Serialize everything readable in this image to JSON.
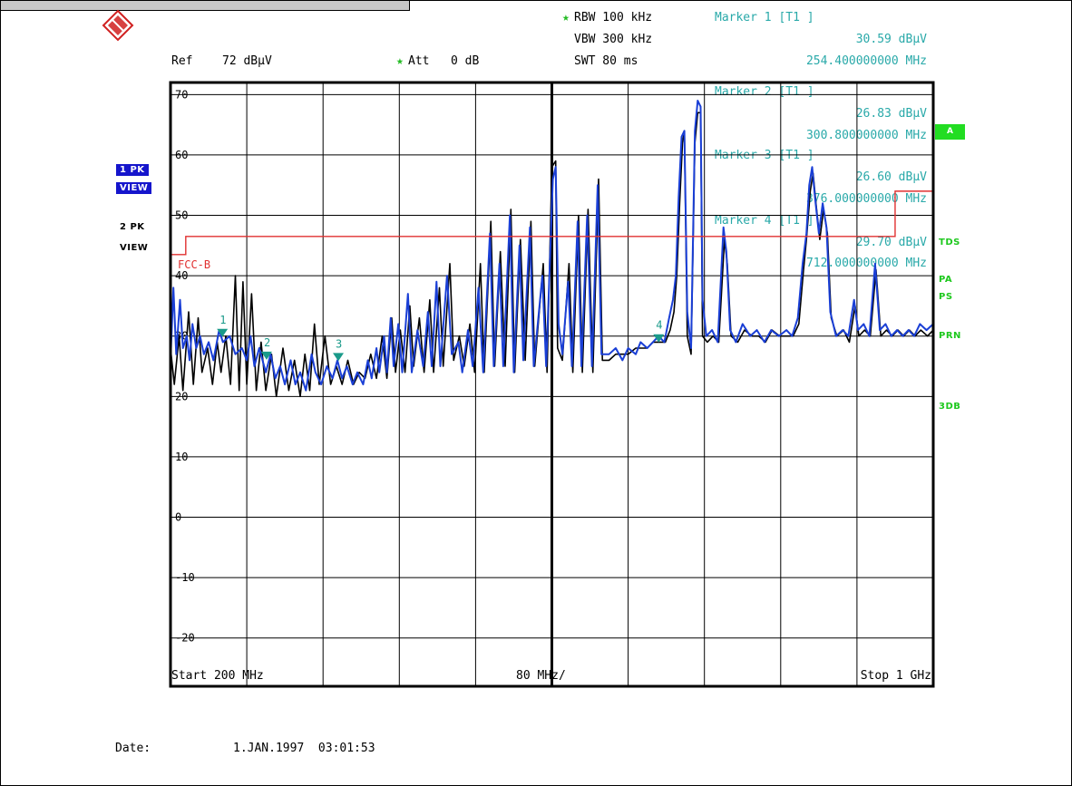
{
  "header": {
    "ref_label": "Ref",
    "ref_value": "72 dBµV",
    "att": "Att   0 dB",
    "rbw": "RBW 100 kHz",
    "vbw": "VBW 300 kHz",
    "swt": "SWT 80 ms"
  },
  "markers": [
    {
      "title": "Marker 1 [T1 ]",
      "level": "30.59 dBµV",
      "freq": "254.400000000 MHz"
    },
    {
      "title": "Marker 2 [T1 ]",
      "level": "26.83 dBµV",
      "freq": "300.800000000 MHz"
    },
    {
      "title": "Marker 3 [T1 ]",
      "level": "26.60 dBµV",
      "freq": "376.000000000 MHz"
    },
    {
      "title": "Marker 4 [T1 ]",
      "level": "29.70 dBµV",
      "freq": "712.000000000 MHz"
    }
  ],
  "side_left": {
    "trace1": "1 PK",
    "trace1_view": "VIEW",
    "trace2": "2 PK",
    "trace2_view": "VIEW"
  },
  "side_right": {
    "a": "A",
    "tds": "TDS",
    "pa": "PA",
    "ps": "PS",
    "prn": "PRN",
    "db3": "3DB"
  },
  "footer": {
    "start": "Start 200 MHz",
    "span": "80 MHz/",
    "stop": "Stop 1 GHz",
    "date_label": "Date:",
    "date_value": "1.JAN.1997  03:01:53"
  },
  "colors": {
    "trace1": "#1a3fd6",
    "trace2": "#000000",
    "limit": "#e03030",
    "marker": "#1a9a8a",
    "text_cyan": "#29a9a9",
    "status_green": "#1ec81e"
  },
  "chart_data": {
    "type": "line",
    "xlabel": "",
    "ylabel": "",
    "xlim": [
      200,
      1000
    ],
    "ylim": [
      -28,
      72
    ],
    "y_ticks": [
      70,
      60,
      50,
      40,
      30,
      20,
      10,
      0,
      -10,
      -20
    ],
    "limit_line": {
      "name": "FCC-B",
      "points": [
        [
          200,
          43.5
        ],
        [
          216,
          43.5
        ],
        [
          216,
          46.5
        ],
        [
          960,
          46.5
        ],
        [
          960,
          54
        ],
        [
          1000,
          54
        ]
      ]
    },
    "markers": [
      {
        "id": "1",
        "x": 254.4,
        "y": 30.59
      },
      {
        "id": "2",
        "x": 300.8,
        "y": 26.83
      },
      {
        "id": "3",
        "x": 376.0,
        "y": 26.6
      },
      {
        "id": "4",
        "x": 712.0,
        "y": 29.7
      }
    ],
    "series": [
      {
        "values": [
          [
            200,
            26
          ],
          [
            203,
            38
          ],
          [
            206,
            27
          ],
          [
            210,
            36
          ],
          [
            213,
            28
          ],
          [
            217,
            30
          ],
          [
            220,
            26
          ],
          [
            223,
            32
          ],
          [
            227,
            28
          ],
          [
            231,
            30
          ],
          [
            235,
            27
          ],
          [
            240,
            29
          ],
          [
            245,
            26
          ],
          [
            251,
            31
          ],
          [
            255,
            29
          ],
          [
            262,
            30
          ],
          [
            268,
            27
          ],
          [
            275,
            28
          ],
          [
            280,
            26
          ],
          [
            284,
            30
          ],
          [
            288,
            25
          ],
          [
            293,
            28
          ],
          [
            300,
            24
          ],
          [
            305,
            27
          ],
          [
            310,
            23
          ],
          [
            315,
            25
          ],
          [
            320,
            22
          ],
          [
            326,
            26
          ],
          [
            331,
            22
          ],
          [
            336,
            24
          ],
          [
            342,
            21
          ],
          [
            348,
            27
          ],
          [
            352,
            24
          ],
          [
            358,
            22
          ],
          [
            364,
            25
          ],
          [
            370,
            23
          ],
          [
            375,
            26
          ],
          [
            380,
            23
          ],
          [
            385,
            25
          ],
          [
            391,
            22
          ],
          [
            396,
            24
          ],
          [
            402,
            22
          ],
          [
            407,
            26
          ],
          [
            411,
            23
          ],
          [
            416,
            28
          ],
          [
            419,
            24
          ],
          [
            424,
            30
          ],
          [
            427,
            24
          ],
          [
            431,
            33
          ],
          [
            434,
            25
          ],
          [
            439,
            32
          ],
          [
            443,
            24
          ],
          [
            449,
            37
          ],
          [
            453,
            24
          ],
          [
            459,
            31
          ],
          [
            465,
            25
          ],
          [
            470,
            34
          ],
          [
            474,
            25
          ],
          [
            479,
            39
          ],
          [
            483,
            25
          ],
          [
            490,
            40
          ],
          [
            495,
            27
          ],
          [
            502,
            29
          ],
          [
            506,
            24
          ],
          [
            512,
            31
          ],
          [
            517,
            25
          ],
          [
            523,
            38
          ],
          [
            528,
            24
          ],
          [
            535,
            47
          ],
          [
            539,
            25
          ],
          [
            545,
            42
          ],
          [
            549,
            25
          ],
          [
            556,
            50
          ],
          [
            560,
            24
          ],
          [
            566,
            45
          ],
          [
            570,
            26
          ],
          [
            577,
            48
          ],
          [
            581,
            25
          ],
          [
            590,
            40
          ],
          [
            594,
            25
          ],
          [
            601,
            56
          ],
          [
            604,
            58
          ],
          [
            607,
            32
          ],
          [
            611,
            27
          ],
          [
            617,
            39
          ],
          [
            621,
            25
          ],
          [
            627,
            49
          ],
          [
            631,
            25
          ],
          [
            637,
            50
          ],
          [
            642,
            25
          ],
          [
            648,
            55
          ],
          [
            652,
            27
          ],
          [
            660,
            27
          ],
          [
            667,
            28
          ],
          [
            674,
            26
          ],
          [
            680,
            28
          ],
          [
            688,
            27
          ],
          [
            693,
            29
          ],
          [
            700,
            28
          ],
          [
            706,
            29
          ],
          [
            712,
            30
          ],
          [
            718,
            29
          ],
          [
            723,
            33
          ],
          [
            727,
            36
          ],
          [
            730,
            40
          ],
          [
            733,
            53
          ],
          [
            736,
            63
          ],
          [
            739,
            64
          ],
          [
            742,
            34
          ],
          [
            746,
            28
          ],
          [
            750,
            64
          ],
          [
            753,
            69
          ],
          [
            756,
            68
          ],
          [
            758,
            36
          ],
          [
            762,
            30
          ],
          [
            768,
            31
          ],
          [
            774,
            29
          ],
          [
            780,
            48
          ],
          [
            783,
            44
          ],
          [
            787,
            31
          ],
          [
            793,
            29
          ],
          [
            800,
            32
          ],
          [
            808,
            30
          ],
          [
            815,
            31
          ],
          [
            823,
            29
          ],
          [
            830,
            31
          ],
          [
            838,
            30
          ],
          [
            846,
            31
          ],
          [
            852,
            30
          ],
          [
            858,
            33
          ],
          [
            863,
            42
          ],
          [
            867,
            47
          ],
          [
            870,
            55
          ],
          [
            873,
            58
          ],
          [
            876,
            53
          ],
          [
            880,
            47
          ],
          [
            884,
            52
          ],
          [
            888,
            48
          ],
          [
            892,
            34
          ],
          [
            898,
            30
          ],
          [
            905,
            31
          ],
          [
            911,
            30
          ],
          [
            917,
            36
          ],
          [
            921,
            31
          ],
          [
            927,
            32
          ],
          [
            933,
            30
          ],
          [
            939,
            42
          ],
          [
            944,
            31
          ],
          [
            950,
            32
          ],
          [
            956,
            30
          ],
          [
            962,
            31
          ],
          [
            968,
            30
          ],
          [
            974,
            31
          ],
          [
            980,
            30
          ],
          [
            986,
            32
          ],
          [
            993,
            31
          ],
          [
            1000,
            32
          ]
        ]
      },
      {
        "values": [
          [
            200,
            28
          ],
          [
            204,
            22
          ],
          [
            209,
            30
          ],
          [
            213,
            21
          ],
          [
            219,
            34
          ],
          [
            224,
            22
          ],
          [
            229,
            33
          ],
          [
            233,
            24
          ],
          [
            239,
            28
          ],
          [
            244,
            22
          ],
          [
            249,
            29
          ],
          [
            253,
            24
          ],
          [
            258,
            30
          ],
          [
            263,
            22
          ],
          [
            268,
            40
          ],
          [
            272,
            21
          ],
          [
            276,
            39
          ],
          [
            280,
            22
          ],
          [
            285,
            37
          ],
          [
            290,
            21
          ],
          [
            295,
            29
          ],
          [
            300,
            21
          ],
          [
            306,
            27
          ],
          [
            311,
            20
          ],
          [
            318,
            28
          ],
          [
            324,
            21
          ],
          [
            330,
            26
          ],
          [
            336,
            20
          ],
          [
            341,
            27
          ],
          [
            346,
            21
          ],
          [
            351,
            32
          ],
          [
            356,
            22
          ],
          [
            362,
            30
          ],
          [
            368,
            22
          ],
          [
            374,
            25
          ],
          [
            380,
            22
          ],
          [
            386,
            26
          ],
          [
            392,
            22
          ],
          [
            398,
            24
          ],
          [
            404,
            23
          ],
          [
            410,
            27
          ],
          [
            416,
            23
          ],
          [
            422,
            30
          ],
          [
            427,
            23
          ],
          [
            432,
            33
          ],
          [
            436,
            24
          ],
          [
            441,
            31
          ],
          [
            446,
            24
          ],
          [
            451,
            35
          ],
          [
            455,
            25
          ],
          [
            461,
            33
          ],
          [
            466,
            24
          ],
          [
            472,
            36
          ],
          [
            476,
            24
          ],
          [
            482,
            38
          ],
          [
            486,
            25
          ],
          [
            493,
            42
          ],
          [
            497,
            26
          ],
          [
            503,
            30
          ],
          [
            508,
            25
          ],
          [
            514,
            32
          ],
          [
            519,
            24
          ],
          [
            525,
            42
          ],
          [
            529,
            24
          ],
          [
            536,
            49
          ],
          [
            540,
            25
          ],
          [
            546,
            44
          ],
          [
            551,
            25
          ],
          [
            557,
            51
          ],
          [
            561,
            24
          ],
          [
            567,
            46
          ],
          [
            572,
            26
          ],
          [
            578,
            49
          ],
          [
            582,
            25
          ],
          [
            591,
            42
          ],
          [
            595,
            24
          ],
          [
            600,
            58
          ],
          [
            604,
            59
          ],
          [
            606,
            28
          ],
          [
            611,
            26
          ],
          [
            618,
            42
          ],
          [
            622,
            24
          ],
          [
            628,
            50
          ],
          [
            632,
            24
          ],
          [
            638,
            51
          ],
          [
            643,
            24
          ],
          [
            649,
            56
          ],
          [
            653,
            26
          ],
          [
            660,
            26
          ],
          [
            667,
            27
          ],
          [
            674,
            27
          ],
          [
            680,
            27
          ],
          [
            688,
            28
          ],
          [
            694,
            28
          ],
          [
            700,
            28
          ],
          [
            706,
            29
          ],
          [
            712,
            29
          ],
          [
            719,
            29
          ],
          [
            724,
            31
          ],
          [
            728,
            34
          ],
          [
            731,
            40
          ],
          [
            734,
            52
          ],
          [
            737,
            62
          ],
          [
            739,
            64
          ],
          [
            742,
            30
          ],
          [
            746,
            27
          ],
          [
            750,
            62
          ],
          [
            753,
            67
          ],
          [
            756,
            67
          ],
          [
            758,
            30
          ],
          [
            763,
            29
          ],
          [
            769,
            30
          ],
          [
            775,
            29
          ],
          [
            781,
            46
          ],
          [
            784,
            42
          ],
          [
            788,
            30
          ],
          [
            795,
            29
          ],
          [
            802,
            31
          ],
          [
            810,
            30
          ],
          [
            817,
            30
          ],
          [
            824,
            29
          ],
          [
            831,
            31
          ],
          [
            839,
            30
          ],
          [
            847,
            30
          ],
          [
            853,
            30
          ],
          [
            859,
            32
          ],
          [
            864,
            41
          ],
          [
            867,
            46
          ],
          [
            871,
            54
          ],
          [
            874,
            57
          ],
          [
            877,
            52
          ],
          [
            881,
            46
          ],
          [
            885,
            51
          ],
          [
            889,
            47
          ],
          [
            893,
            33
          ],
          [
            899,
            30
          ],
          [
            906,
            31
          ],
          [
            912,
            29
          ],
          [
            918,
            35
          ],
          [
            922,
            30
          ],
          [
            928,
            31
          ],
          [
            934,
            30
          ],
          [
            940,
            41
          ],
          [
            945,
            30
          ],
          [
            951,
            31
          ],
          [
            957,
            30
          ],
          [
            963,
            31
          ],
          [
            969,
            30
          ],
          [
            975,
            31
          ],
          [
            981,
            30
          ],
          [
            987,
            31
          ],
          [
            994,
            30
          ],
          [
            1000,
            31
          ]
        ]
      }
    ]
  }
}
